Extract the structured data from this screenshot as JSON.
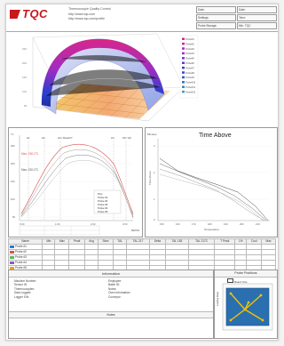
{
  "header": {
    "logo": "TQC",
    "lines": [
      "Thermocouple Quality Control",
      "http://www.tqc.com",
      "http://www.tqc.com/profile"
    ],
    "fields": [
      {
        "label": "Date:"
      },
      {
        "label": "Date:"
      },
      {
        "label": "Settings:"
      },
      {
        "label": "Time:"
      },
      {
        "label": "Probe Storage:"
      },
      {
        "label": "Min. TQC"
      }
    ]
  },
  "surface_legend": [
    "Probe#1",
    "Probe#2",
    "Probe#3",
    "Probe#4",
    "Probe#5",
    "Probe#6",
    "Probe#7",
    "Probe#8",
    "Probe#9",
    "Probe#10",
    "Probe#11",
    "Probe#12"
  ],
  "profile_chart": {
    "ylabel": "°C",
    "annotations": [
      "Max: 230.2°C",
      "Max: 220.0°C"
    ],
    "markers": [
      "A1",
      "A2",
      "A3 / Reach?",
      "A4",
      "A5 / A6"
    ],
    "legend": [
      "Pins",
      "Probe #1",
      "Probe #2",
      "Probe #3",
      "Probe #4",
      "Probe #5"
    ],
    "yticks": [
      "250",
      "200",
      "150",
      "100",
      "50"
    ],
    "xticks": [
      "0:00",
      "1:00",
      "2:00",
      "3:00"
    ],
    "xlabel": "MM:SS",
    "series": [
      {
        "name": "Probe #1",
        "color": "#d9534f"
      },
      {
        "name": "Probe #2",
        "color": "#999999"
      },
      {
        "name": "Probe #3",
        "color": "#777777"
      },
      {
        "name": "Probe #4",
        "color": "#bbbbbb"
      }
    ]
  },
  "time_above": {
    "title": "Time Above",
    "ylabel": "Minutes",
    "yaxis_label": "Time Above",
    "xlabel": "Temperature",
    "xticks": [
      "150",
      "160",
      "170",
      "180",
      "190",
      "200",
      "210"
    ],
    "yticks": [
      "3",
      "2",
      "1",
      "0"
    ]
  },
  "data_table": {
    "headers": [
      "Name",
      "Min",
      "Max",
      "Peak",
      "Avg",
      "Slew",
      "TAL",
      "TAL 217",
      "Delta",
      "TAL 183",
      "TAL 217C",
      "T Peak",
      "1%",
      "Cool",
      "Max"
    ],
    "rows": [
      {
        "name": "Probe #1",
        "color": "#2b7bd8"
      },
      {
        "name": "Probe #2",
        "color": "#d9534f"
      },
      {
        "name": "Probe #3",
        "color": "#5cb85c"
      },
      {
        "name": "Probe #4",
        "color": "#8a5cb8"
      },
      {
        "name": "Probe #5",
        "color": "#e8a020"
      }
    ]
  },
  "information": {
    "title": "Information",
    "left_labels": [
      "Machine Number:",
      "Sensor ID:",
      "Thermocouples:",
      "Data Logged:",
      "Logger S/N:"
    ],
    "right_labels": [
      "Employee:",
      "Batch ID:",
      "Notes:",
      "Oven Information:",
      "Conveyor:"
    ],
    "notes_title": "Notes"
  },
  "probe_positions": {
    "title": "Probe Positions",
    "legend": "Board Size",
    "side_label": "Leading Edge"
  },
  "colors": {
    "brand": "#c8161d",
    "board": "#2a6fb0",
    "board_trace": "#f2c200"
  }
}
